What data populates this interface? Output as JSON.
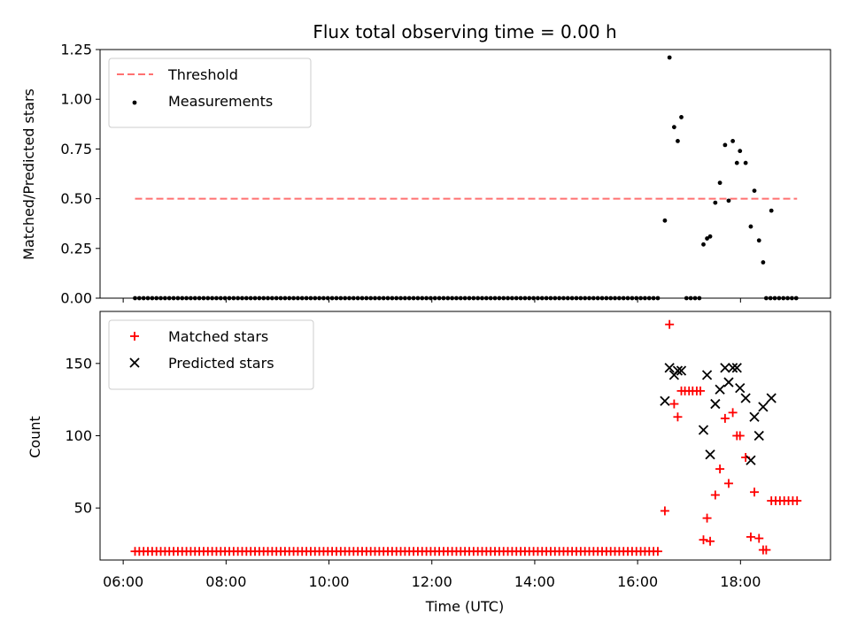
{
  "chart_data": {
    "type": "scatter",
    "title": "Flux total observing time = 0.00 h",
    "xlabel": "Time (UTC)",
    "x_tick_labels": [
      "06:00",
      "08:00",
      "10:00",
      "12:00",
      "14:00",
      "16:00",
      "18:00"
    ],
    "x_range_hours": [
      5.55,
      19.75
    ],
    "panels": [
      {
        "ylabel": "Matched/Predicted stars",
        "ylim": [
          0,
          1.25
        ],
        "y_ticks": [
          "0.00",
          "0.25",
          "0.50",
          "0.75",
          "1.00",
          "1.25"
        ],
        "legend_location": "upper-left",
        "series": [
          {
            "name": "Threshold",
            "type": "line",
            "style": "dashed",
            "color": "#ff7070",
            "x": [
              6.23,
              19.1
            ],
            "y": [
              0.5,
              0.5
            ]
          },
          {
            "name": "Measurements",
            "type": "scatter",
            "marker": "dot",
            "color": "#000000",
            "x": [
              16.53,
              16.62,
              16.71,
              16.78,
              16.85,
              17.28,
              17.35,
              17.41,
              17.51,
              17.6,
              17.7,
              17.77,
              17.85,
              17.93,
              17.99,
              18.1,
              18.2,
              18.27,
              18.36,
              18.44,
              18.6
            ],
            "y": [
              0.39,
              1.21,
              0.86,
              0.79,
              0.91,
              0.27,
              0.3,
              0.31,
              0.48,
              0.58,
              0.77,
              0.49,
              0.79,
              0.68,
              0.74,
              0.68,
              0.36,
              0.54,
              0.29,
              0.18,
              0.44
            ]
          },
          {
            "name": "",
            "type": "scatter",
            "marker": "dot",
            "color": "#000000",
            "note_zero_band": true,
            "zero_ranges_hours": [
              [
                6.23,
                16.45
              ],
              [
                16.95,
                17.22
              ],
              [
                18.5,
                19.1
              ]
            ],
            "y_value": 0
          }
        ]
      },
      {
        "ylabel": "Count",
        "ylim": [
          14,
          186
        ],
        "y_ticks": [
          "50",
          "100",
          "150"
        ],
        "legend_location": "upper-left",
        "series": [
          {
            "name": "Matched stars",
            "type": "scatter",
            "marker": "plus",
            "color": "#ff0000",
            "x": [
              16.53,
              16.62,
              16.71,
              16.78,
              16.85,
              16.92,
              17.0,
              17.07,
              17.15,
              17.22,
              17.28,
              17.35,
              17.41,
              17.51,
              17.6,
              17.7,
              17.77,
              17.85,
              17.93,
              17.99,
              18.1,
              18.2,
              18.27,
              18.36,
              18.44,
              18.5
            ],
            "y": [
              48,
              177,
              122,
              113,
              131,
              131,
              131,
              131,
              131,
              131,
              28,
              43,
              27,
              59,
              77,
              112,
              67,
              116,
              100,
              100,
              85,
              30,
              61,
              29,
              21,
              21
            ],
            "low_band_hours": [
              6.23,
              16.45
            ],
            "low_band_value": 20,
            "tail_band_hours": [
              18.6,
              19.1
            ],
            "tail_band_value": 55
          },
          {
            "name": "Predicted stars",
            "type": "scatter",
            "marker": "x",
            "color": "#000000",
            "x": [
              16.53,
              16.62,
              16.71,
              16.78,
              16.85,
              17.28,
              17.35,
              17.41,
              17.51,
              17.6,
              17.7,
              17.77,
              17.85,
              17.93,
              17.99,
              18.1,
              18.2,
              18.27,
              18.36,
              18.44,
              18.6
            ],
            "y": [
              124,
              147,
              142,
              145,
              145,
              104,
              142,
              87,
              122,
              132,
              147,
              137,
              147,
              147,
              133,
              126,
              83,
              113,
              100,
              120,
              126
            ]
          }
        ]
      }
    ]
  }
}
